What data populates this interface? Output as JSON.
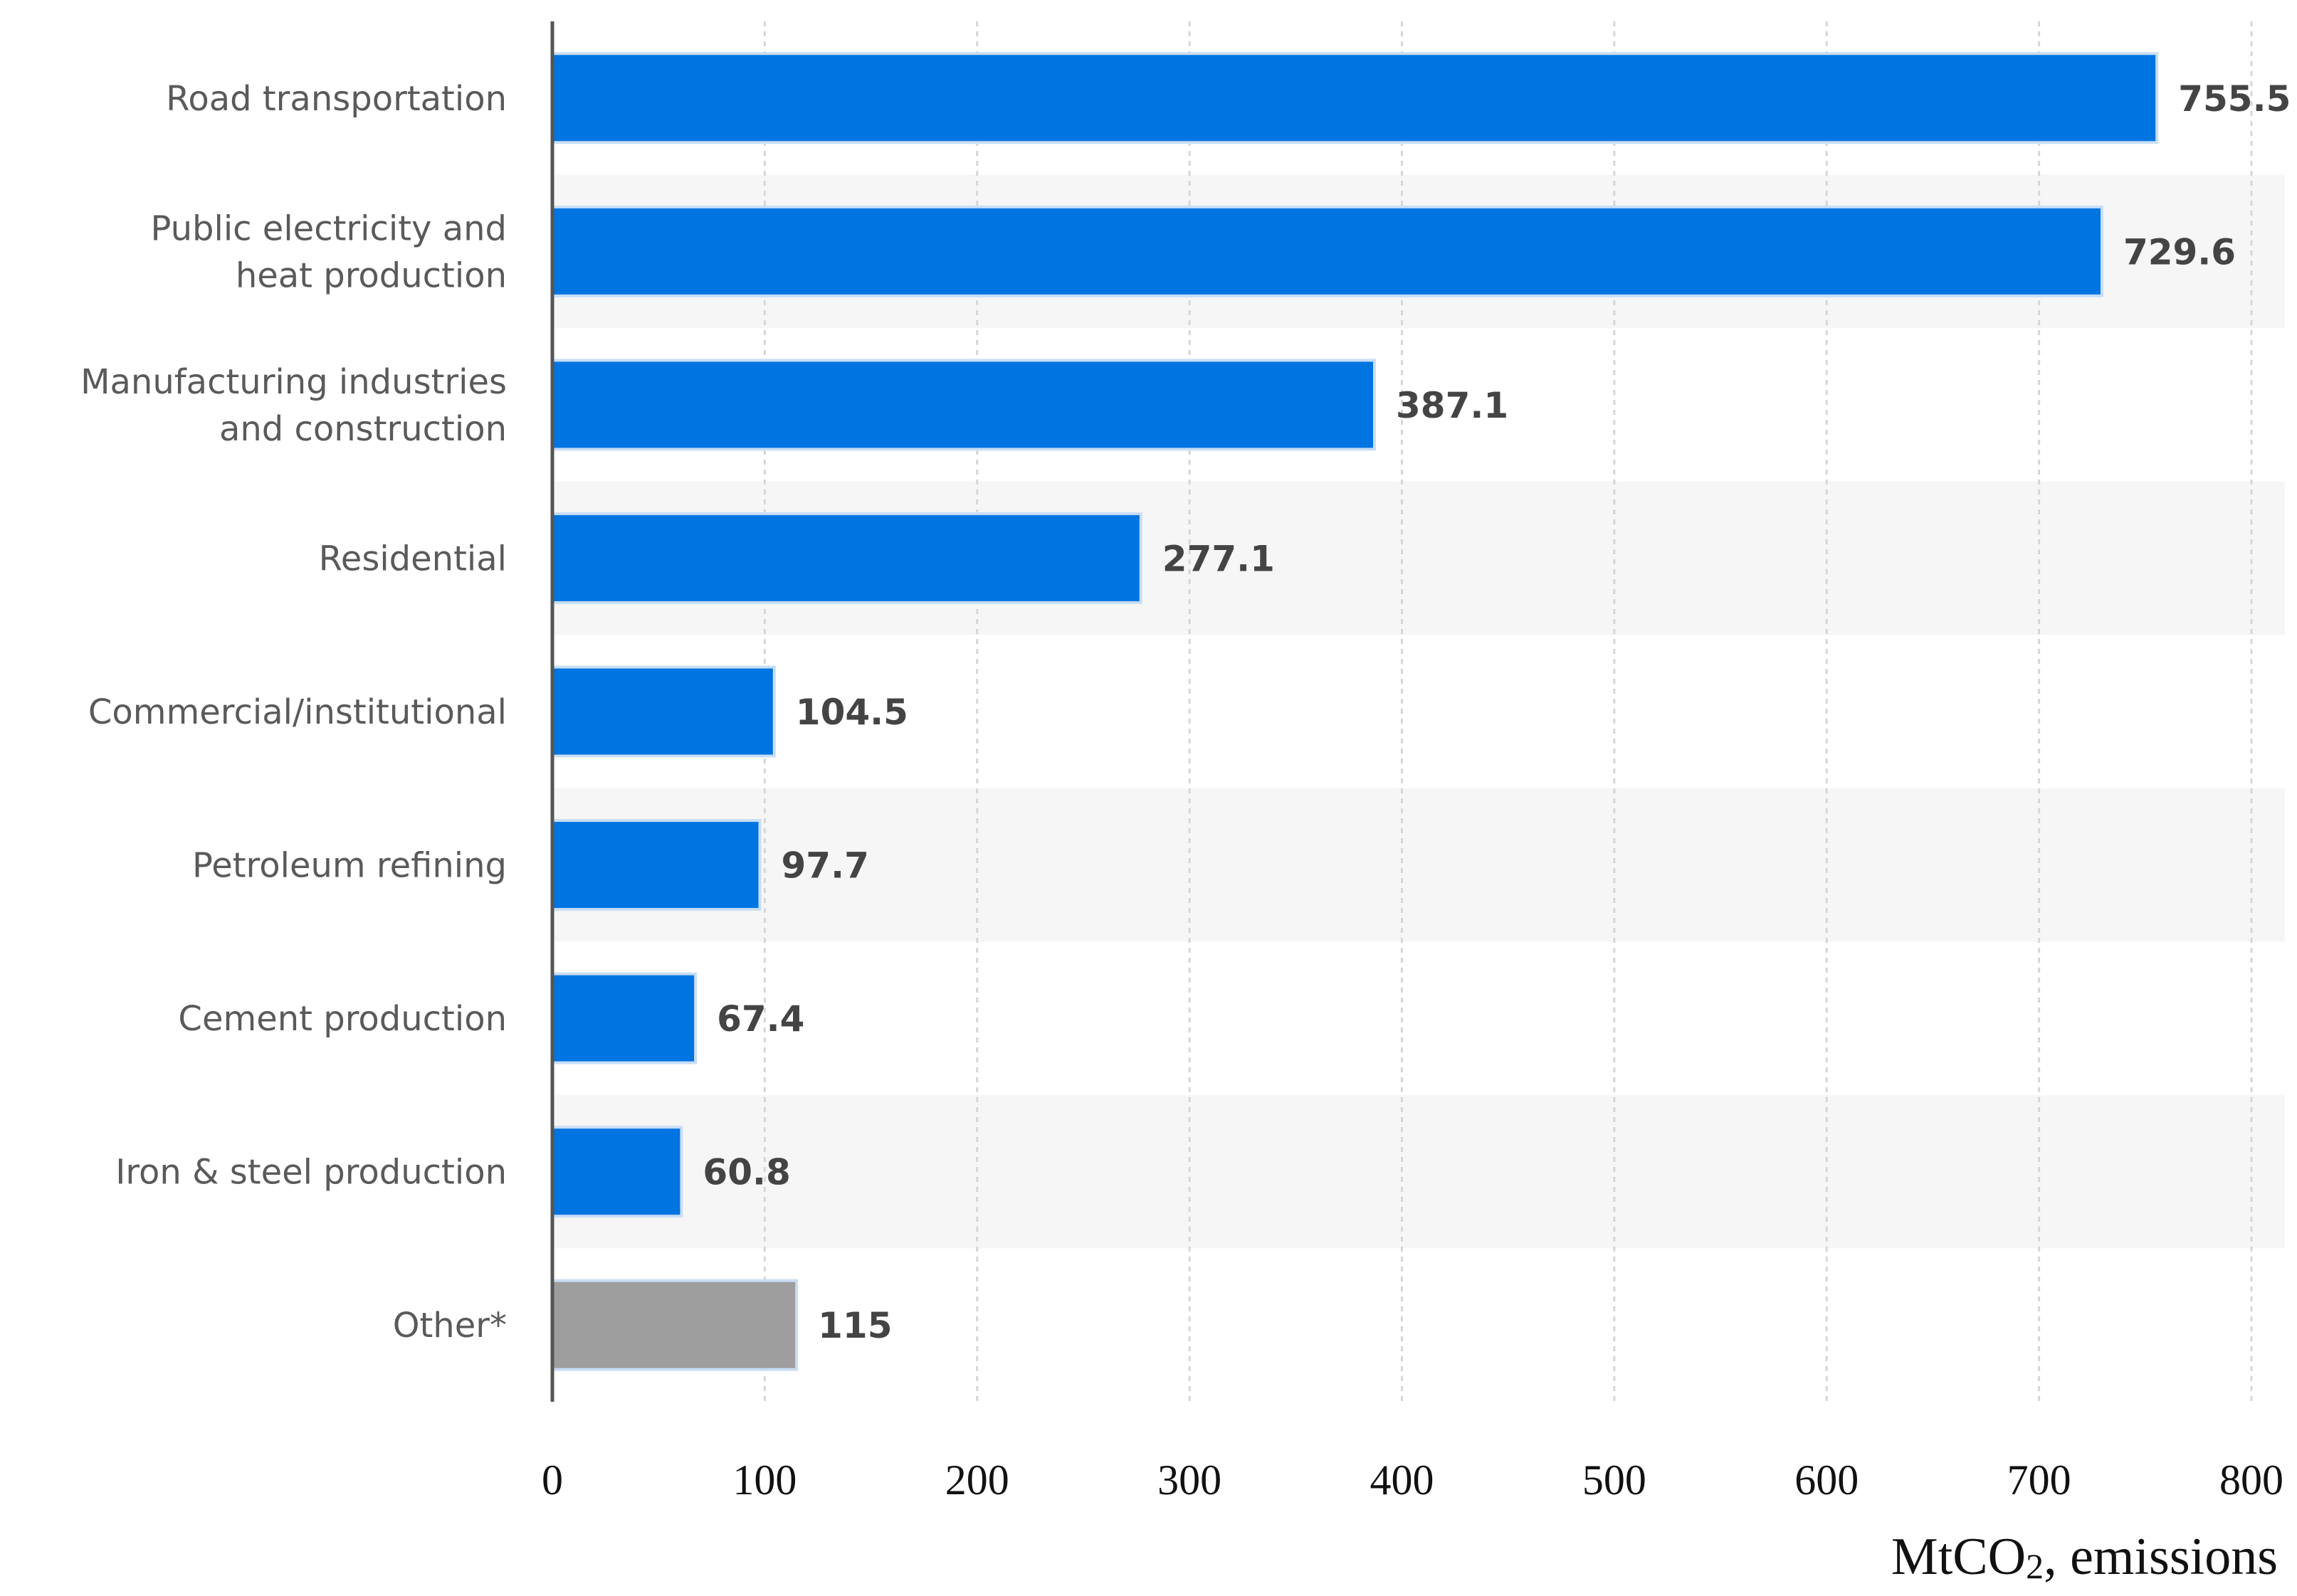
{
  "chart_data": {
    "type": "bar",
    "orientation": "horizontal",
    "categories": [
      [
        "Road transportation"
      ],
      [
        "Public electricity and",
        "heat production"
      ],
      [
        "Manufacturing industries",
        "and construction"
      ],
      [
        "Residential"
      ],
      [
        "Commercial/institutional"
      ],
      [
        "Petroleum refining"
      ],
      [
        "Cement production"
      ],
      [
        "Iron & steel production"
      ],
      [
        "Other*"
      ]
    ],
    "values": [
      755.5,
      729.6,
      387.1,
      277.1,
      104.5,
      97.7,
      67.4,
      60.8,
      115
    ],
    "value_labels": [
      "755.5",
      "729.6",
      "387.1",
      "277.1",
      "104.5",
      "97.7",
      "67.4",
      "60.8",
      "115"
    ],
    "bar_colors": [
      "#0074e0",
      "#0074e0",
      "#0074e0",
      "#0074e0",
      "#0074e0",
      "#0074e0",
      "#0074e0",
      "#0074e0",
      "#9e9e9e"
    ],
    "xlim": [
      0,
      800
    ],
    "xticks": [
      0,
      100,
      200,
      300,
      400,
      500,
      600,
      700,
      800
    ],
    "xlabel_main": "MtCO",
    "xlabel_sub": "2",
    "xlabel_rest": ", emissions",
    "grid": true,
    "title": ""
  }
}
